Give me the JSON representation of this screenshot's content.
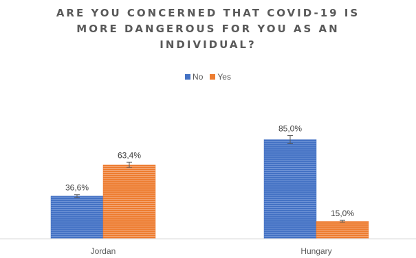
{
  "chart_data": {
    "type": "bar",
    "title_lines": [
      "ARE YOU CONCERNED THAT COVID-19 IS",
      "MORE DANGEROUS FOR YOU AS AN",
      "INDIVIDUAL?"
    ],
    "categories": [
      "Jordan",
      "Hungary"
    ],
    "series": [
      {
        "name": "No",
        "values": [
          36.6,
          85.0
        ],
        "labels": [
          "36,6%",
          "85,0%"
        ],
        "error": [
          1.2,
          3.5
        ],
        "color": "#4472C4"
      },
      {
        "name": "Yes",
        "values": [
          63.4,
          15.0
        ],
        "labels": [
          "63,4%",
          "15,0%"
        ],
        "error": [
          2.3,
          0.8
        ],
        "color": "#ED7D31"
      }
    ],
    "ylim": [
      0,
      100
    ],
    "legend_position": "top",
    "grid": false,
    "axis_color": "#d9d9d9",
    "text_color": "#595959"
  }
}
